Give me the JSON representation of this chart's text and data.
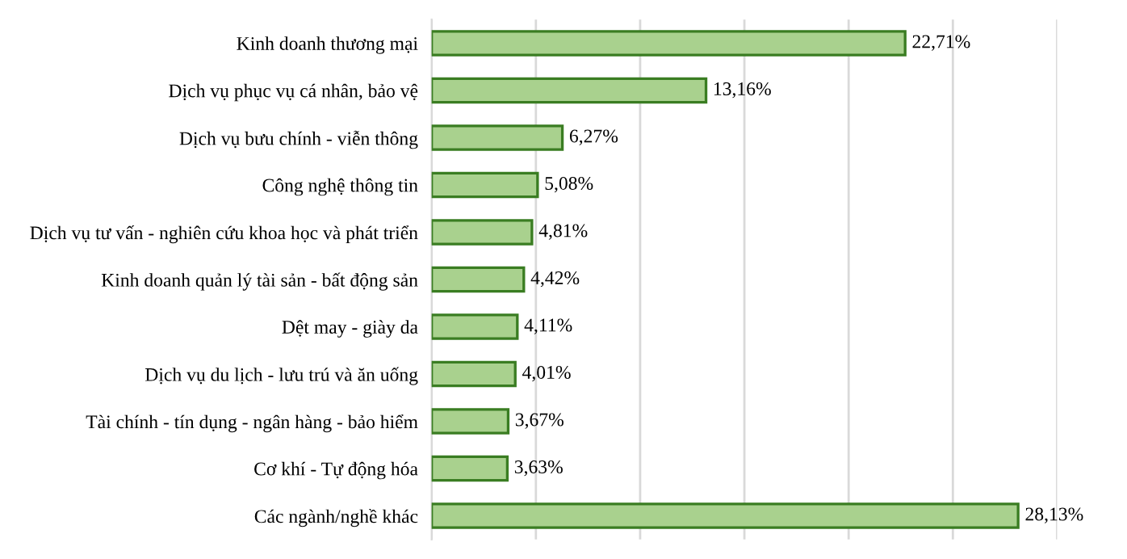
{
  "chart_data": {
    "type": "bar",
    "orientation": "horizontal",
    "categories": [
      "Kinh doanh thương mại",
      "Dịch vụ phục vụ cá nhân, bảo vệ",
      "Dịch vụ bưu chính - viễn thông",
      "Công nghệ thông tin",
      "Dịch vụ tư vấn - nghiên cứu khoa học và phát triển",
      "Kinh doanh quản lý tài sản - bất động sản",
      "Dệt may - giày da",
      "Dịch vụ du lịch - lưu trú và ăn uống",
      "Tài chính - tín dụng - ngân hàng - bảo hiểm",
      "Cơ khí - Tự động hóa",
      "Các ngành/nghề khác"
    ],
    "values": [
      22.71,
      13.16,
      6.27,
      5.08,
      4.81,
      4.42,
      4.11,
      4.01,
      3.67,
      3.63,
      28.13
    ],
    "value_labels": [
      "22,71%",
      "13,16%",
      "6,27%",
      "5,08%",
      "4,81%",
      "4,42%",
      "4,11%",
      "4,01%",
      "3,67%",
      "3,63%",
      "28,13%"
    ],
    "color": "#a9d18e",
    "xlim": [
      0,
      30
    ],
    "xticks": [
      {
        "value": 0,
        "label": null
      },
      {
        "value": 5,
        "label": null
      },
      {
        "value": 10,
        "label": null
      },
      {
        "value": 15,
        "label": null
      },
      {
        "value": 20,
        "label": null
      },
      {
        "value": 25,
        "label": null
      },
      {
        "value": 30,
        "label": null
      }
    ],
    "tick_labels": "y",
    "grid": "x",
    "legend": false
  }
}
